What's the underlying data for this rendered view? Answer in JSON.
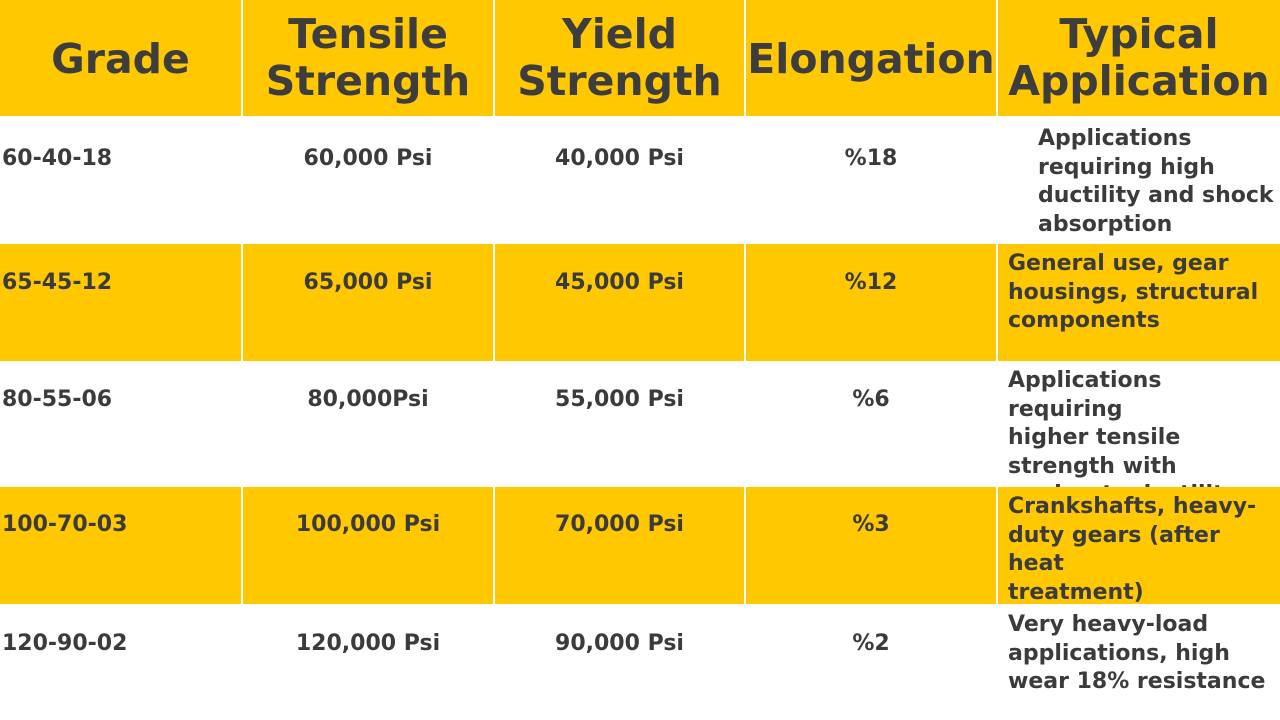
{
  "headers": [
    {
      "line1": "Grade",
      "line2": ""
    },
    {
      "line1": "Tensile",
      "line2": "Strength"
    },
    {
      "line1": "Yield",
      "line2": "Strength"
    },
    {
      "line1": "Elongation",
      "line2": ""
    },
    {
      "line1": "Typical",
      "line2": "Application"
    }
  ],
  "rows": [
    {
      "grade": "60-40-18",
      "tensile": "60,000 Psi",
      "yield": "40,000 Psi",
      "elongation": "%18",
      "application": [
        "Applications",
        "requiring high",
        "ductility and shock",
        "absorption"
      ]
    },
    {
      "grade": "65-45-12",
      "tensile": "65,000 Psi",
      "yield": "45,000 Psi",
      "elongation": "%12",
      "application": [
        "General use, gear",
        "housings, structural",
        "components",
        ""
      ]
    },
    {
      "grade": "80-55-06",
      "tensile": "80,000Psi",
      "yield": "55,000 Psi",
      "elongation": "%6",
      "application": [
        "Applications requiring",
        "higher tensile",
        "strength with",
        "moderate ductility"
      ]
    },
    {
      "grade": "100-70-03",
      "tensile": "100,000 Psi",
      "yield": "70,000 Psi",
      "elongation": "%3",
      "application": [
        "Crankshafts, heavy-",
        "duty gears (after heat",
        "treatment)",
        ""
      ]
    },
    {
      "grade": "120-90-02",
      "tensile": "120,000 Psi",
      "yield": "90,000 Psi",
      "elongation": "%2",
      "application": [
        "Very heavy-load",
        "applications, high",
        "wear 18% resistance",
        ""
      ]
    }
  ],
  "colors": {
    "accent": "#ffc800",
    "text": "#3b3b3b",
    "background": "#ffffff"
  }
}
